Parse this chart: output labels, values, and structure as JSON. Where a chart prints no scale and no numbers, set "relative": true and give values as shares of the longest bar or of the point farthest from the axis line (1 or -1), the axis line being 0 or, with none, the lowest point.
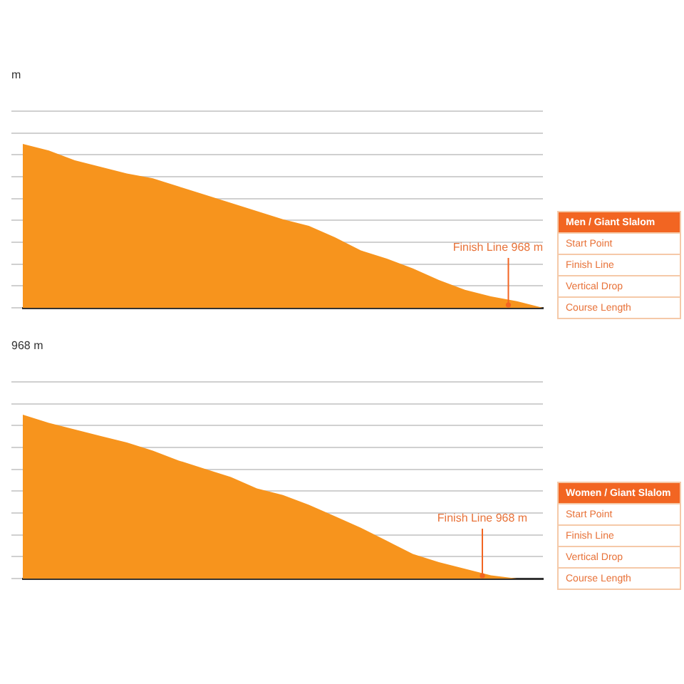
{
  "chart_data": [
    {
      "type": "area",
      "relative": true,
      "grid": "y",
      "categories": [
        null,
        null,
        null,
        null,
        null,
        null,
        null,
        null,
        null,
        null,
        null,
        null,
        null,
        null,
        null,
        null,
        null,
        null,
        null,
        null,
        null
      ],
      "series": [
        {
          "color": "#f7941d",
          "values": [
            1,
            0.96,
            0.9,
            0.86,
            0.82,
            0.79,
            0.74,
            0.69,
            0.64,
            0.59,
            0.54,
            0.5,
            0.43,
            0.35,
            0.3,
            0.24,
            0.17,
            0.11,
            0.07,
            0.04,
            0
          ]
        }
      ],
      "annotations": [
        "m",
        "Men / Giant Slalom",
        "Start Point",
        "Finish Line",
        "Vertical Drop",
        "Course Length",
        {
          "text": "Finish Line 968 m"
        }
      ]
    },
    {
      "type": "area",
      "relative": true,
      "grid": "y",
      "categories": [
        null,
        null,
        null,
        null,
        null,
        null,
        null,
        null,
        null,
        null,
        null,
        null,
        null,
        null,
        null,
        null,
        null,
        null,
        null,
        null,
        null
      ],
      "series": [
        {
          "color": "#f7941d",
          "values": [
            1,
            0.95,
            0.91,
            0.87,
            0.83,
            0.78,
            0.72,
            0.67,
            0.62,
            0.55,
            0.51,
            0.45,
            0.38,
            0.31,
            0.23,
            0.15,
            0.1,
            0.06,
            0.02,
            0,
            0
          ]
        }
      ],
      "annotations": [
        "968 m",
        "Women / Giant Slalom",
        "Start Point",
        "Finish Line",
        "Vertical Drop",
        "Course Length",
        {
          "text": "Finish Line 968 m"
        }
      ]
    }
  ]
}
